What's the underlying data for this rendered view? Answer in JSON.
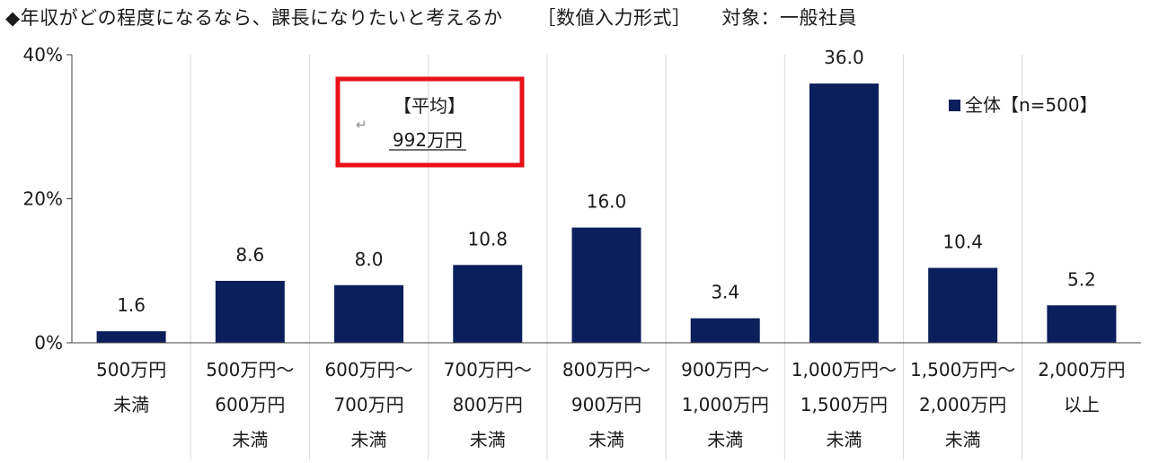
{
  "title": {
    "text": "◆年収がどの程度になるなら、課長になりたいと考えるか",
    "format": "［数値入力形式］",
    "target": "対象：一般社員"
  },
  "colors": {
    "bar": "#0b1f5c",
    "annotation_border": "#e8101a",
    "grid": "#d9d9d9"
  },
  "annotation": {
    "heading": "【平均】",
    "value": "992万円",
    "return_icon": "↵"
  },
  "chart_data": {
    "type": "bar",
    "categories": [
      [
        "500万円",
        "未満"
      ],
      [
        "500万円～",
        "600万円",
        "未満"
      ],
      [
        "600万円～",
        "700万円",
        "未満"
      ],
      [
        "700万円～",
        "800万円",
        "未満"
      ],
      [
        "800万円～",
        "900万円",
        "未満"
      ],
      [
        "900万円～",
        "1,000万円",
        "未満"
      ],
      [
        "1,000万円～",
        "1,500万円",
        "未満"
      ],
      [
        "1,500万円～",
        "2,000万円",
        "未満"
      ],
      [
        "2,000万円",
        "以上"
      ]
    ],
    "series": [
      {
        "name": "全体【n=500】",
        "values": [
          1.6,
          8.6,
          8.0,
          10.8,
          16.0,
          3.4,
          36.0,
          10.4,
          5.2
        ],
        "labels": [
          "1.6",
          "8.6",
          "8.0",
          "10.8",
          "16.0",
          "3.4",
          "36.0",
          "10.4",
          "5.2"
        ]
      }
    ],
    "ylim": [
      0,
      40
    ],
    "yticks": [
      {
        "value": 0,
        "label": "0%"
      },
      {
        "value": 20,
        "label": "20%"
      },
      {
        "value": 40,
        "label": "40%"
      }
    ],
    "grid": "vertical separators",
    "legend_position": "top-right"
  }
}
